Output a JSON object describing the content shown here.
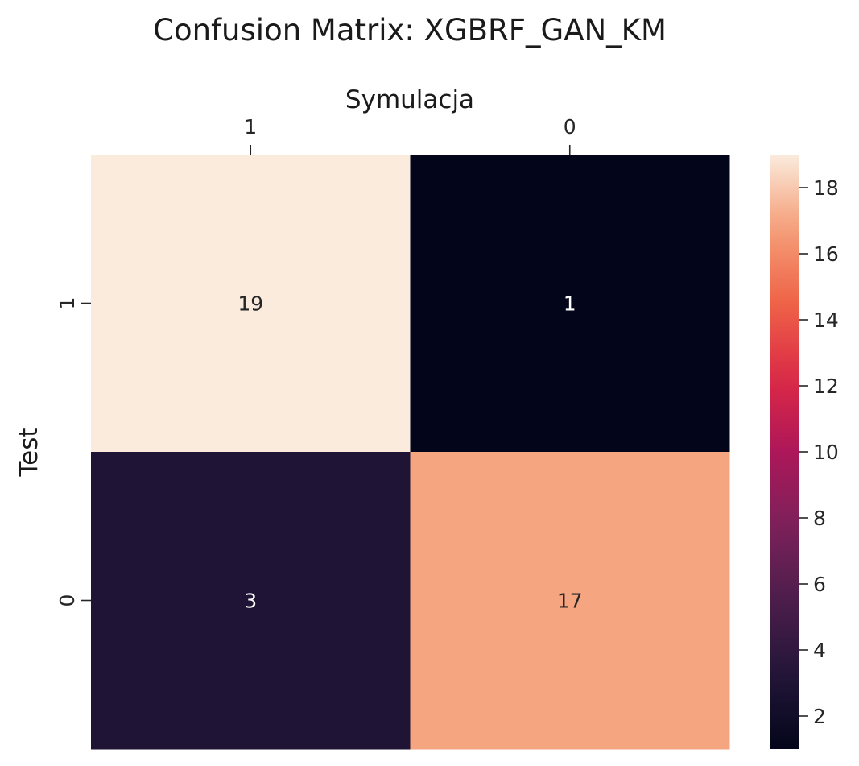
{
  "chart_data": {
    "type": "heatmap",
    "title": "Confusion Matrix: XGBRF_GAN_KM",
    "xlabel": "Symulacja",
    "ylabel": "Test",
    "x_categories": [
      "1",
      "0"
    ],
    "y_categories": [
      "1",
      "0"
    ],
    "values": [
      [
        19,
        1
      ],
      [
        3,
        17
      ]
    ],
    "colormap": "rocket",
    "colorbar": {
      "range": [
        1,
        19
      ],
      "ticks": [
        2,
        4,
        6,
        8,
        10,
        12,
        14,
        16,
        18
      ]
    }
  }
}
